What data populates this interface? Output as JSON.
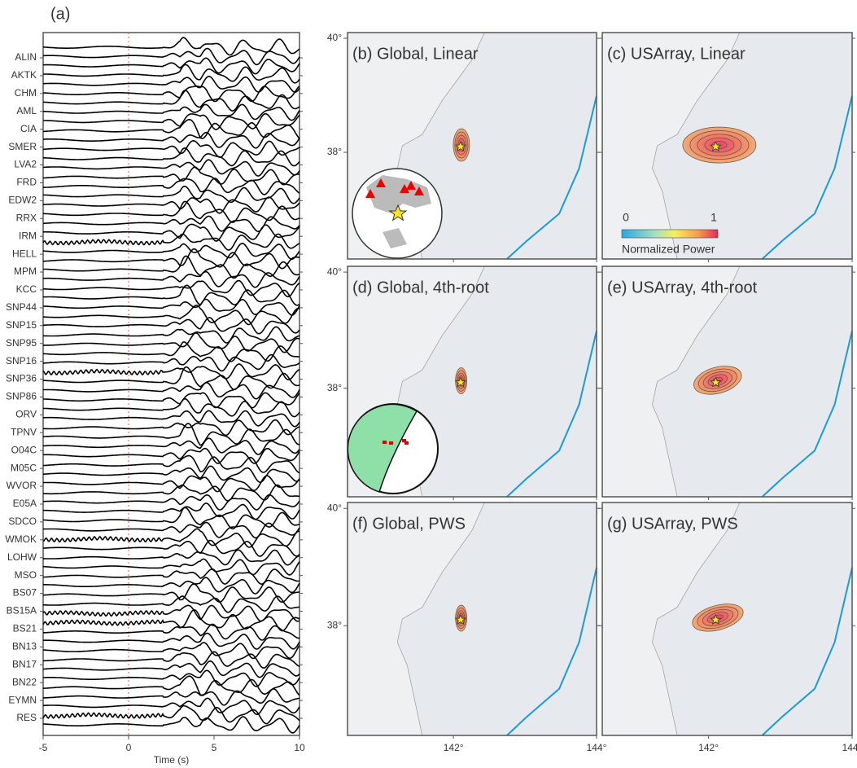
{
  "panel_a": {
    "label": "(a)",
    "stations": [
      "ALIN",
      "AKTK",
      "CHM",
      "AML",
      "CIA",
      "SMER",
      "LVA2",
      "FRD",
      "EDW2",
      "RRX",
      "IRM",
      "HELL",
      "MPM",
      "KCC",
      "SNP44",
      "SNP15",
      "SNP95",
      "SNP16",
      "SNP36",
      "SNP86",
      "ORV",
      "TPNV",
      "O04C",
      "M05C",
      "WVOR",
      "E05A",
      "SDCO",
      "WMOK",
      "LOHW",
      "MSO",
      "BS07",
      "BS15A",
      "BS21",
      "BN13",
      "BN17",
      "BN22",
      "EYMN",
      "RES"
    ],
    "xlabel": "Time (s)",
    "xlim": [
      -5,
      10
    ],
    "xticks": [
      -5,
      0,
      5,
      10
    ]
  },
  "maps": {
    "lonlim": [
      140.52,
      144.0
    ],
    "latlim": [
      36.13,
      40.1
    ],
    "lonticks": [
      {
        "value": 142,
        "label": "142°"
      },
      {
        "value": 144,
        "label": "144°"
      }
    ],
    "latticks": [
      {
        "value": 38,
        "label": "38°"
      },
      {
        "value": 40,
        "label": "40°"
      }
    ],
    "epicenter": {
      "lon": 142.1,
      "lat": 38.1
    },
    "panels": [
      {
        "title": "(b) Global, Linear"
      },
      {
        "title": "(c) USArray, Linear"
      },
      {
        "title": "(d) Global, 4th-root"
      },
      {
        "title": "(e) USArray, 4th-root"
      },
      {
        "title": "(f) Global, PWS"
      },
      {
        "title": "(g) USArray, PWS"
      }
    ]
  },
  "colorbar": {
    "ticks": [
      0,
      1
    ],
    "label": "Normalized Power"
  }
}
